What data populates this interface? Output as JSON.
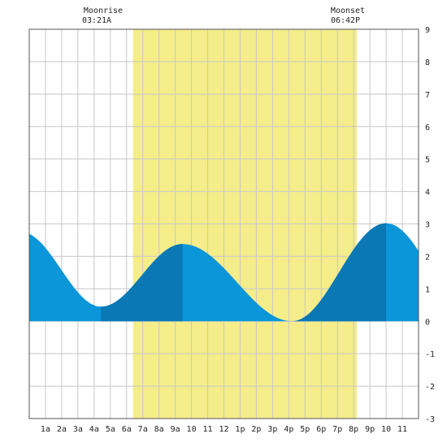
{
  "moon": {
    "rise_label": "Moonrise",
    "rise_time": "03:21A",
    "set_label": "Moonset",
    "set_time": "06:42P"
  },
  "colors": {
    "daylight": "#f5ec8a",
    "tide_light": "#0a96d9",
    "tide_dark": "#0a78b4",
    "grid": "#c8c8c8",
    "frame": "#555555"
  },
  "chart_data": {
    "type": "area",
    "title": "",
    "xlabel": "",
    "ylabel": "",
    "xlim": [
      0,
      24
    ],
    "ylim": [
      -3,
      9
    ],
    "grid": true,
    "x_ticks": [
      {
        "pos": 1,
        "label": "1a"
      },
      {
        "pos": 2,
        "label": "2a"
      },
      {
        "pos": 3,
        "label": "3a"
      },
      {
        "pos": 4,
        "label": "4a"
      },
      {
        "pos": 5,
        "label": "5a"
      },
      {
        "pos": 6,
        "label": "6a"
      },
      {
        "pos": 7,
        "label": "7a"
      },
      {
        "pos": 8,
        "label": "8a"
      },
      {
        "pos": 9,
        "label": "9a"
      },
      {
        "pos": 10,
        "label": "10"
      },
      {
        "pos": 11,
        "label": "11"
      },
      {
        "pos": 12,
        "label": "12"
      },
      {
        "pos": 13,
        "label": "1p"
      },
      {
        "pos": 14,
        "label": "2p"
      },
      {
        "pos": 15,
        "label": "3p"
      },
      {
        "pos": 16,
        "label": "4p"
      },
      {
        "pos": 17,
        "label": "5p"
      },
      {
        "pos": 18,
        "label": "6p"
      },
      {
        "pos": 19,
        "label": "7p"
      },
      {
        "pos": 20,
        "label": "8p"
      },
      {
        "pos": 21,
        "label": "9p"
      },
      {
        "pos": 22,
        "label": "10"
      },
      {
        "pos": 23,
        "label": "11"
      }
    ],
    "y_ticks": [
      -3,
      -2,
      -1,
      0,
      1,
      2,
      3,
      4,
      5,
      6,
      7,
      8,
      9
    ],
    "daylight": {
      "start": 6.4,
      "end": 20.2
    },
    "moonrise_hour": 3.35,
    "moonset_hour": 18.7,
    "extrema": [
      {
        "x": -0.5,
        "y": 2.75
      },
      {
        "x": 4.42,
        "y": 0.45
      },
      {
        "x": 9.45,
        "y": 2.38
      },
      {
        "x": 16.2,
        "y": 0.0
      },
      {
        "x": 22.0,
        "y": 3.02
      },
      {
        "x": 28.0,
        "y": -0.4
      }
    ],
    "dark_segments": [
      {
        "start": 4.42,
        "end": 9.45
      },
      {
        "start": 16.2,
        "end": 22.0
      }
    ]
  }
}
